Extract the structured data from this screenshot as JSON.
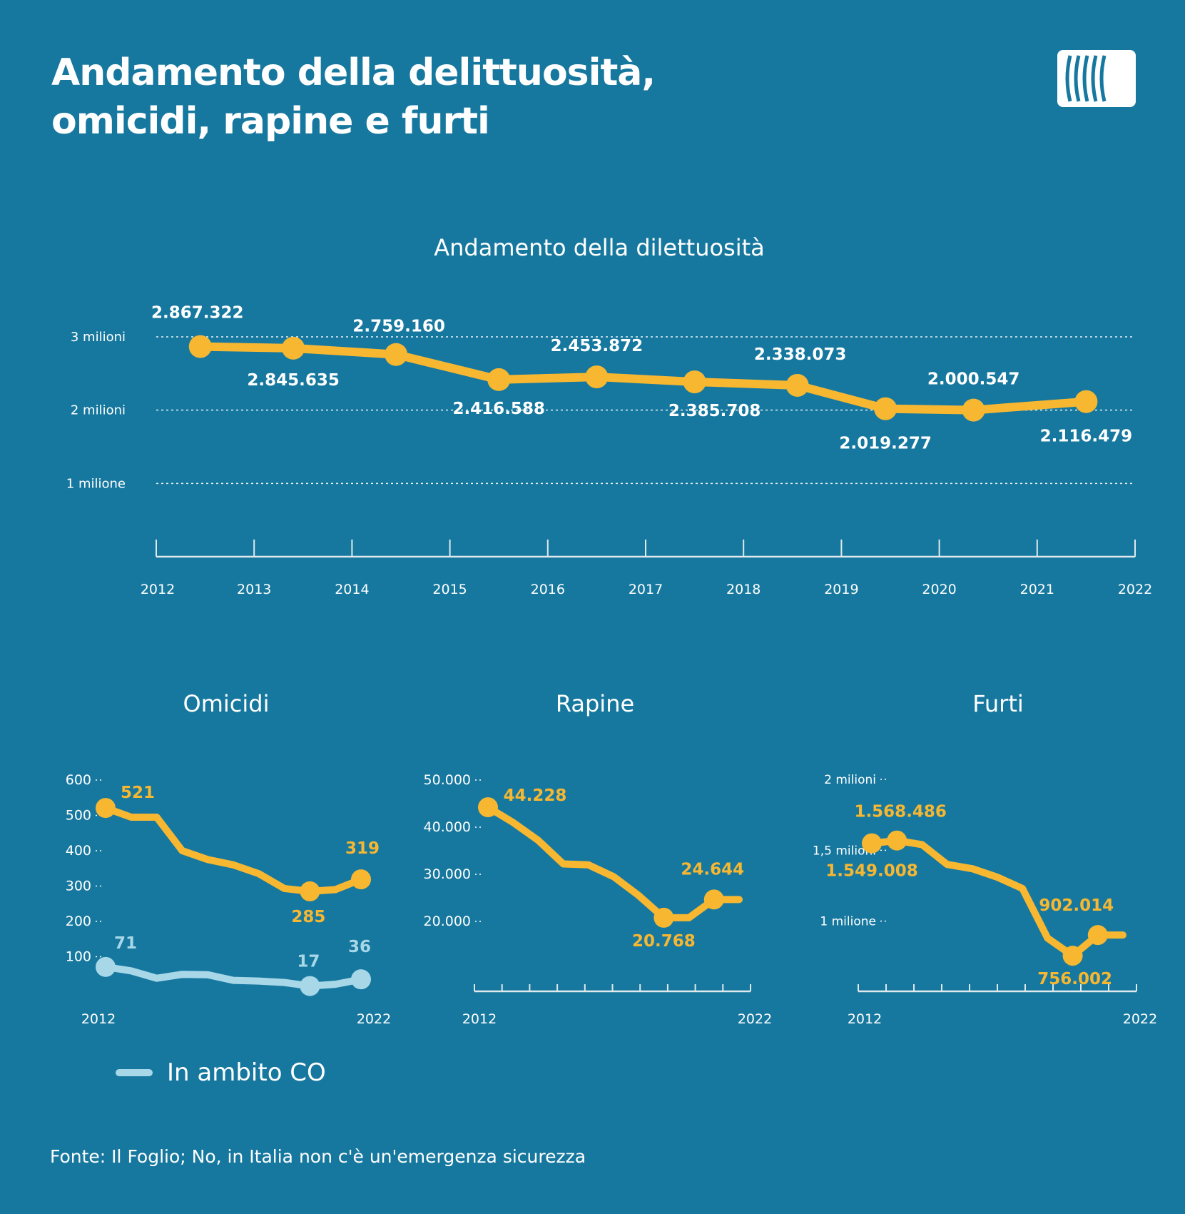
{
  "title_line1": "Andamento della delittuosità,",
  "title_line2": "omicidi, rapine e furti",
  "legend": {
    "label": "In ambito CO",
    "color": "#a8d8e8"
  },
  "source": "Fonte: Il Foglio; No, in Italia non c'è un'emergenza sicurezza",
  "colors": {
    "background": "#17789f",
    "main_series": "#f7b731",
    "secondary_series": "#a8d8e8",
    "text": "#ffffff"
  },
  "chart_data": [
    {
      "type": "line",
      "title": "Andamento della dilettuosità",
      "x_ticks": [
        "2012",
        "2013",
        "2014",
        "2015",
        "2016",
        "2017",
        "2018",
        "2019",
        "2020",
        "2021",
        "2022"
      ],
      "y_ticks": [
        {
          "value": 1000000,
          "label": "1 milione"
        },
        {
          "value": 2000000,
          "label": "2 milioni"
        },
        {
          "value": 3000000,
          "label": "3 milioni"
        }
      ],
      "ylim": [
        0,
        3000000
      ],
      "grid": true,
      "series": [
        {
          "x": [
            2012.45,
            2013.4,
            2014.45,
            2015.5,
            2016.5,
            2017.5,
            2018.55,
            2019.45,
            2020.35,
            2021.5
          ],
          "values": [
            2867322,
            2845635,
            2759160,
            2416588,
            2453872,
            2385708,
            2338073,
            2019277,
            2000547,
            2116479
          ],
          "labels": [
            "2.867.322",
            "2.845.635",
            "2.759.160",
            "2.416.588",
            "2.453.872",
            "2.385.708",
            "2.338.073",
            "2.019.277",
            "2.000.547",
            "2.116.479"
          ]
        }
      ]
    },
    {
      "type": "line",
      "title": "Omicidi",
      "x_ticks": [
        "2012",
        "2022"
      ],
      "y_ticks": [
        {
          "value": 100,
          "label": "100"
        },
        {
          "value": 200,
          "label": "200"
        },
        {
          "value": 300,
          "label": "300"
        },
        {
          "value": 400,
          "label": "400"
        },
        {
          "value": 500,
          "label": "500"
        },
        {
          "value": 600,
          "label": "600"
        }
      ],
      "ylim": [
        0,
        600
      ],
      "series": [
        {
          "x": [
            2012.0,
            2013.0,
            2014.0,
            2015.0,
            2016.0,
            2017.0,
            2018.0,
            2019.0,
            2020.0,
            2021.0,
            2022.0
          ],
          "values": [
            521,
            495,
            495,
            400,
            375,
            360,
            335,
            293,
            285,
            290,
            319
          ],
          "labels": [
            "521",
            "",
            "",
            "",
            "",
            "",
            "",
            "",
            "285",
            "",
            "319"
          ],
          "marker_indices": [
            0,
            8,
            10
          ]
        },
        {
          "name": "In ambito CO",
          "x": [
            2012.0,
            2013.0,
            2014.0,
            2015.0,
            2016.0,
            2017.0,
            2018.0,
            2019.0,
            2020.0,
            2021.0,
            2022.0
          ],
          "values": [
            71,
            60,
            39,
            50,
            49,
            33,
            31,
            27,
            17,
            22,
            36
          ],
          "labels": [
            "71",
            "",
            "",
            "",
            "",
            "",
            "",
            "",
            "17",
            "",
            "36"
          ],
          "marker_indices": [
            0,
            8,
            10
          ]
        }
      ]
    },
    {
      "type": "line",
      "title": "Rapine",
      "x_ticks": [
        "2012",
        "2022"
      ],
      "y_ticks": [
        {
          "value": 20000,
          "label": "20.000"
        },
        {
          "value": 30000,
          "label": "30.000"
        },
        {
          "value": 40000,
          "label": "40.000"
        },
        {
          "value": 50000,
          "label": "50.000"
        }
      ],
      "ylim": [
        5000,
        50000
      ],
      "series": [
        {
          "x": [
            2012.0,
            2013.0,
            2014.0,
            2015.0,
            2016.0,
            2017.0,
            2018.0,
            2019.0,
            2020.0,
            2021.0,
            2022.0
          ],
          "values": [
            44228,
            41000,
            37200,
            32200,
            32000,
            29500,
            25500,
            20768,
            20768,
            24644,
            24644
          ],
          "labels": [
            "44.228",
            "",
            "",
            "",
            "",
            "",
            "",
            "20.768",
            "",
            "24.644",
            ""
          ],
          "marker_indices": [
            0,
            7,
            9
          ]
        }
      ]
    },
    {
      "type": "line",
      "title": "Furti",
      "x_ticks": [
        "2012",
        "2022"
      ],
      "y_ticks": [
        {
          "value": 1000000,
          "label": "1 milione"
        },
        {
          "value": 1500000,
          "label": "1,5 milioni"
        },
        {
          "value": 2000000,
          "label": "2 milioni"
        }
      ],
      "ylim": [
        500000,
        2000000
      ],
      "series": [
        {
          "x": [
            2012.0,
            2013.0,
            2014.0,
            2015.0,
            2016.0,
            2017.0,
            2018.0,
            2019.0,
            2020.0,
            2021.0,
            2022.0
          ],
          "values": [
            1549008,
            1568486,
            1540000,
            1400000,
            1370000,
            1310000,
            1230000,
            880000,
            756002,
            902014,
            902014
          ],
          "labels": [
            "1.549.008",
            "1.568.486",
            "",
            "",
            "",
            "",
            "",
            "",
            "756.002",
            "902.014",
            ""
          ],
          "marker_indices": [
            0,
            1,
            8,
            9
          ]
        }
      ]
    }
  ]
}
